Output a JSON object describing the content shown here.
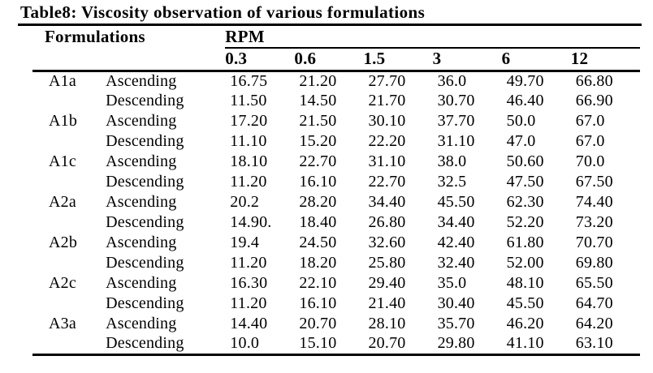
{
  "page": {
    "background_color": "#ffffff",
    "text_color": "#000000"
  },
  "title": "Table8: Viscosity observation of various formulations",
  "table": {
    "left_group_header": "Formulations",
    "right_group_header": "RPM",
    "rpm_columns": [
      "0.3",
      "0.6",
      "1.5",
      "3",
      "6",
      "12"
    ],
    "rows": [
      {
        "formulation": "A1a",
        "direction": "Ascending",
        "values": [
          "16.75",
          "21.20",
          "27.70",
          "36.0",
          "49.70",
          "66.80"
        ]
      },
      {
        "formulation": "",
        "direction": "Descending",
        "values": [
          "11.50",
          "14.50",
          "21.70",
          "30.70",
          "46.40",
          "66.90"
        ]
      },
      {
        "formulation": "A1b",
        "direction": "Ascending",
        "values": [
          "17.20",
          "21.50",
          "30.10",
          "37.70",
          "50.0",
          "67.0"
        ]
      },
      {
        "formulation": "",
        "direction": "Descending",
        "values": [
          "11.10",
          "15.20",
          "22.20",
          "31.10",
          "47.0",
          "67.0"
        ]
      },
      {
        "formulation": "A1c",
        "direction": "Ascending",
        "values": [
          "18.10",
          "22.70",
          "31.10",
          "38.0",
          "50.60",
          "70.0"
        ]
      },
      {
        "formulation": "",
        "direction": "Descending",
        "values": [
          "11.20",
          "16.10",
          "22.70",
          "32.5",
          "47.50",
          "67.50"
        ]
      },
      {
        "formulation": "A2a",
        "direction": "Ascending",
        "values": [
          "20.2",
          "28.20",
          "34.40",
          "45.50",
          "62.30",
          "74.40"
        ]
      },
      {
        "formulation": "",
        "direction": "Descending",
        "values": [
          "14.90.",
          "18.40",
          "26.80",
          "34.40",
          "52.20",
          "73.20"
        ]
      },
      {
        "formulation": "A2b",
        "direction": "Ascending",
        "values": [
          "19.4",
          "24.50",
          "32.60",
          "42.40",
          "61.80",
          "70.70"
        ]
      },
      {
        "formulation": "",
        "direction": "Descending",
        "values": [
          "11.20",
          "18.20",
          "25.80",
          "32.40",
          "52.00",
          "69.80"
        ]
      },
      {
        "formulation": "A2c",
        "direction": "Ascending",
        "values": [
          "16.30",
          "22.10",
          "29.40",
          "35.0",
          "48.10",
          "65.50"
        ]
      },
      {
        "formulation": "",
        "direction": "Descending",
        "values": [
          "11.20",
          "16.10",
          "21.40",
          "30.40",
          "45.50",
          "64.70"
        ]
      },
      {
        "formulation": "A3a",
        "direction": "Ascending",
        "values": [
          "14.40",
          "20.70",
          "28.10",
          "35.70",
          "46.20",
          "64.20"
        ]
      },
      {
        "formulation": "",
        "direction": "Descending",
        "values": [
          "10.0",
          "15.10",
          "20.70",
          "29.80",
          "41.10",
          "63.10"
        ]
      }
    ]
  }
}
